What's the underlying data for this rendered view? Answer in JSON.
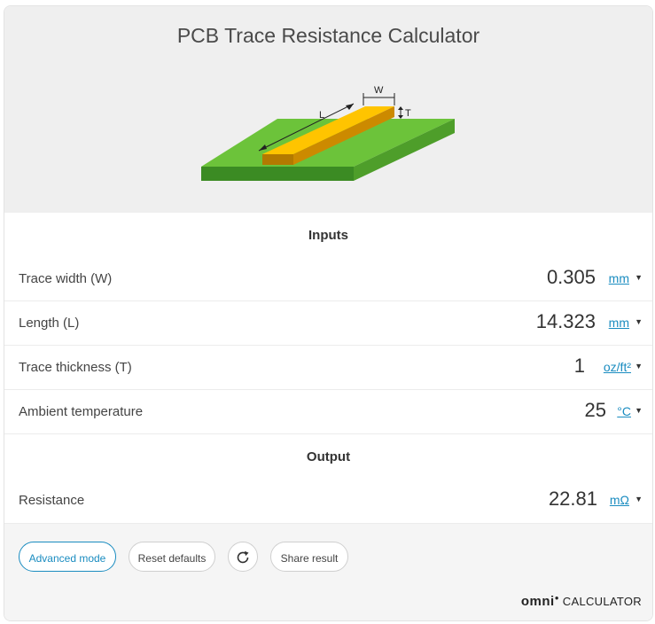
{
  "title": "PCB Trace Resistance Calculator",
  "diagram": {
    "labels": {
      "length": "L",
      "width": "W",
      "thickness": "T"
    },
    "colors": {
      "board_top": "#6cc33a",
      "board_side": "#3b8b23",
      "trace_top": "#ffc400",
      "trace_side": "#cc8a00",
      "trace_end": "#b37a00"
    }
  },
  "inputs": {
    "heading": "Inputs",
    "rows": [
      {
        "label": "Trace width (W)",
        "value": "0.305",
        "unit": "mm"
      },
      {
        "label": "Length (L)",
        "value": "14.323",
        "unit": "mm"
      },
      {
        "label": "Trace thickness (T)",
        "value": "1",
        "unit": "oz/ft²"
      },
      {
        "label": "Ambient temperature",
        "value": "25",
        "unit": "°C"
      }
    ]
  },
  "output": {
    "heading": "Output",
    "rows": [
      {
        "label": "Resistance",
        "value": "22.81",
        "unit": "mΩ"
      }
    ]
  },
  "buttons": {
    "advanced": "Advanced mode",
    "reset": "Reset defaults",
    "share": "Share result"
  },
  "brand": {
    "logo": "omni",
    "word": "CALCULATOR"
  },
  "dropdown_glyph": "▼",
  "colors": {
    "accent": "#1a8cc0"
  }
}
